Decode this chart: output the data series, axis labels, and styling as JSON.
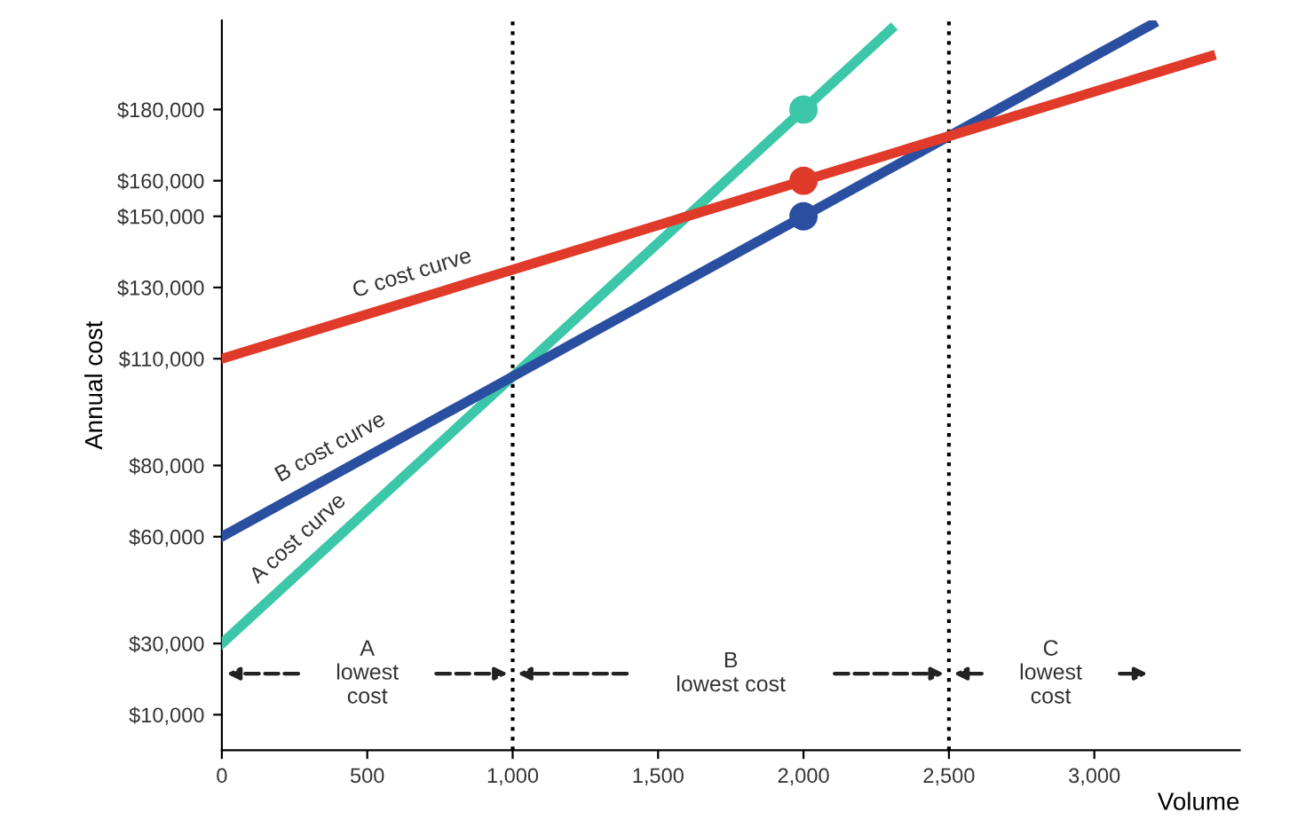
{
  "chart_data": {
    "type": "line",
    "xlabel": "Volume",
    "ylabel": "Annual cost",
    "xlim": [
      0,
      3500
    ],
    "ylim": [
      0,
      205000
    ],
    "xticks": [
      0,
      500,
      {
        "value": 1000,
        "label": "1,000"
      },
      {
        "value": 1500,
        "label": "1,500"
      },
      {
        "value": 2000,
        "label": "2,000"
      },
      {
        "value": 2500,
        "label": "2,500"
      },
      {
        "value": 3000,
        "label": "3,000"
      }
    ],
    "yticks": [
      {
        "value": 10000,
        "label": "$10,000"
      },
      {
        "value": 30000,
        "label": "$30,000"
      },
      {
        "value": 60000,
        "label": "$60,000"
      },
      {
        "value": 80000,
        "label": "$80,000"
      },
      {
        "value": 110000,
        "label": "$110,000"
      },
      {
        "value": 130000,
        "label": "$130,000"
      },
      {
        "value": 150000,
        "label": "$150,000"
      },
      {
        "value": 160000,
        "label": "$160,000"
      },
      {
        "value": 180000,
        "label": "$180,000"
      }
    ],
    "series": [
      {
        "name": "A cost curve",
        "color": "#3cc8a8",
        "x": [
          0,
          2300
        ],
        "values": [
          30000,
          202500
        ]
      },
      {
        "name": "B cost curve",
        "color": "#2b4fa0",
        "x": [
          0,
          3200
        ],
        "values": [
          60000,
          204000
        ]
      },
      {
        "name": "C cost curve",
        "color": "#e03a2a",
        "x": [
          0,
          3400
        ],
        "values": [
          110000,
          195000
        ]
      },
      {
        "type": "scatter",
        "marker": "circle",
        "color": "#3cc8a8",
        "x": [
          2000
        ],
        "values": [
          180000
        ]
      },
      {
        "type": "scatter",
        "marker": "circle",
        "color": "#e03a2a",
        "x": [
          2000
        ],
        "values": [
          160000
        ]
      },
      {
        "type": "scatter",
        "marker": "circle",
        "color": "#2b4fa0",
        "x": [
          2000
        ],
        "values": [
          150000
        ]
      }
    ],
    "ref_lines": [
      {
        "axis": "x",
        "value": 1000,
        "line_style": "dotted",
        "color": "#000000"
      },
      {
        "axis": "x",
        "value": 2500,
        "line_style": "dotted",
        "color": "#000000"
      }
    ],
    "annotations": [
      "A\nlowest\ncost",
      "B\nlowest cost",
      "C\nlowest\ncost"
    ],
    "grid": false,
    "line_style": "solid"
  }
}
